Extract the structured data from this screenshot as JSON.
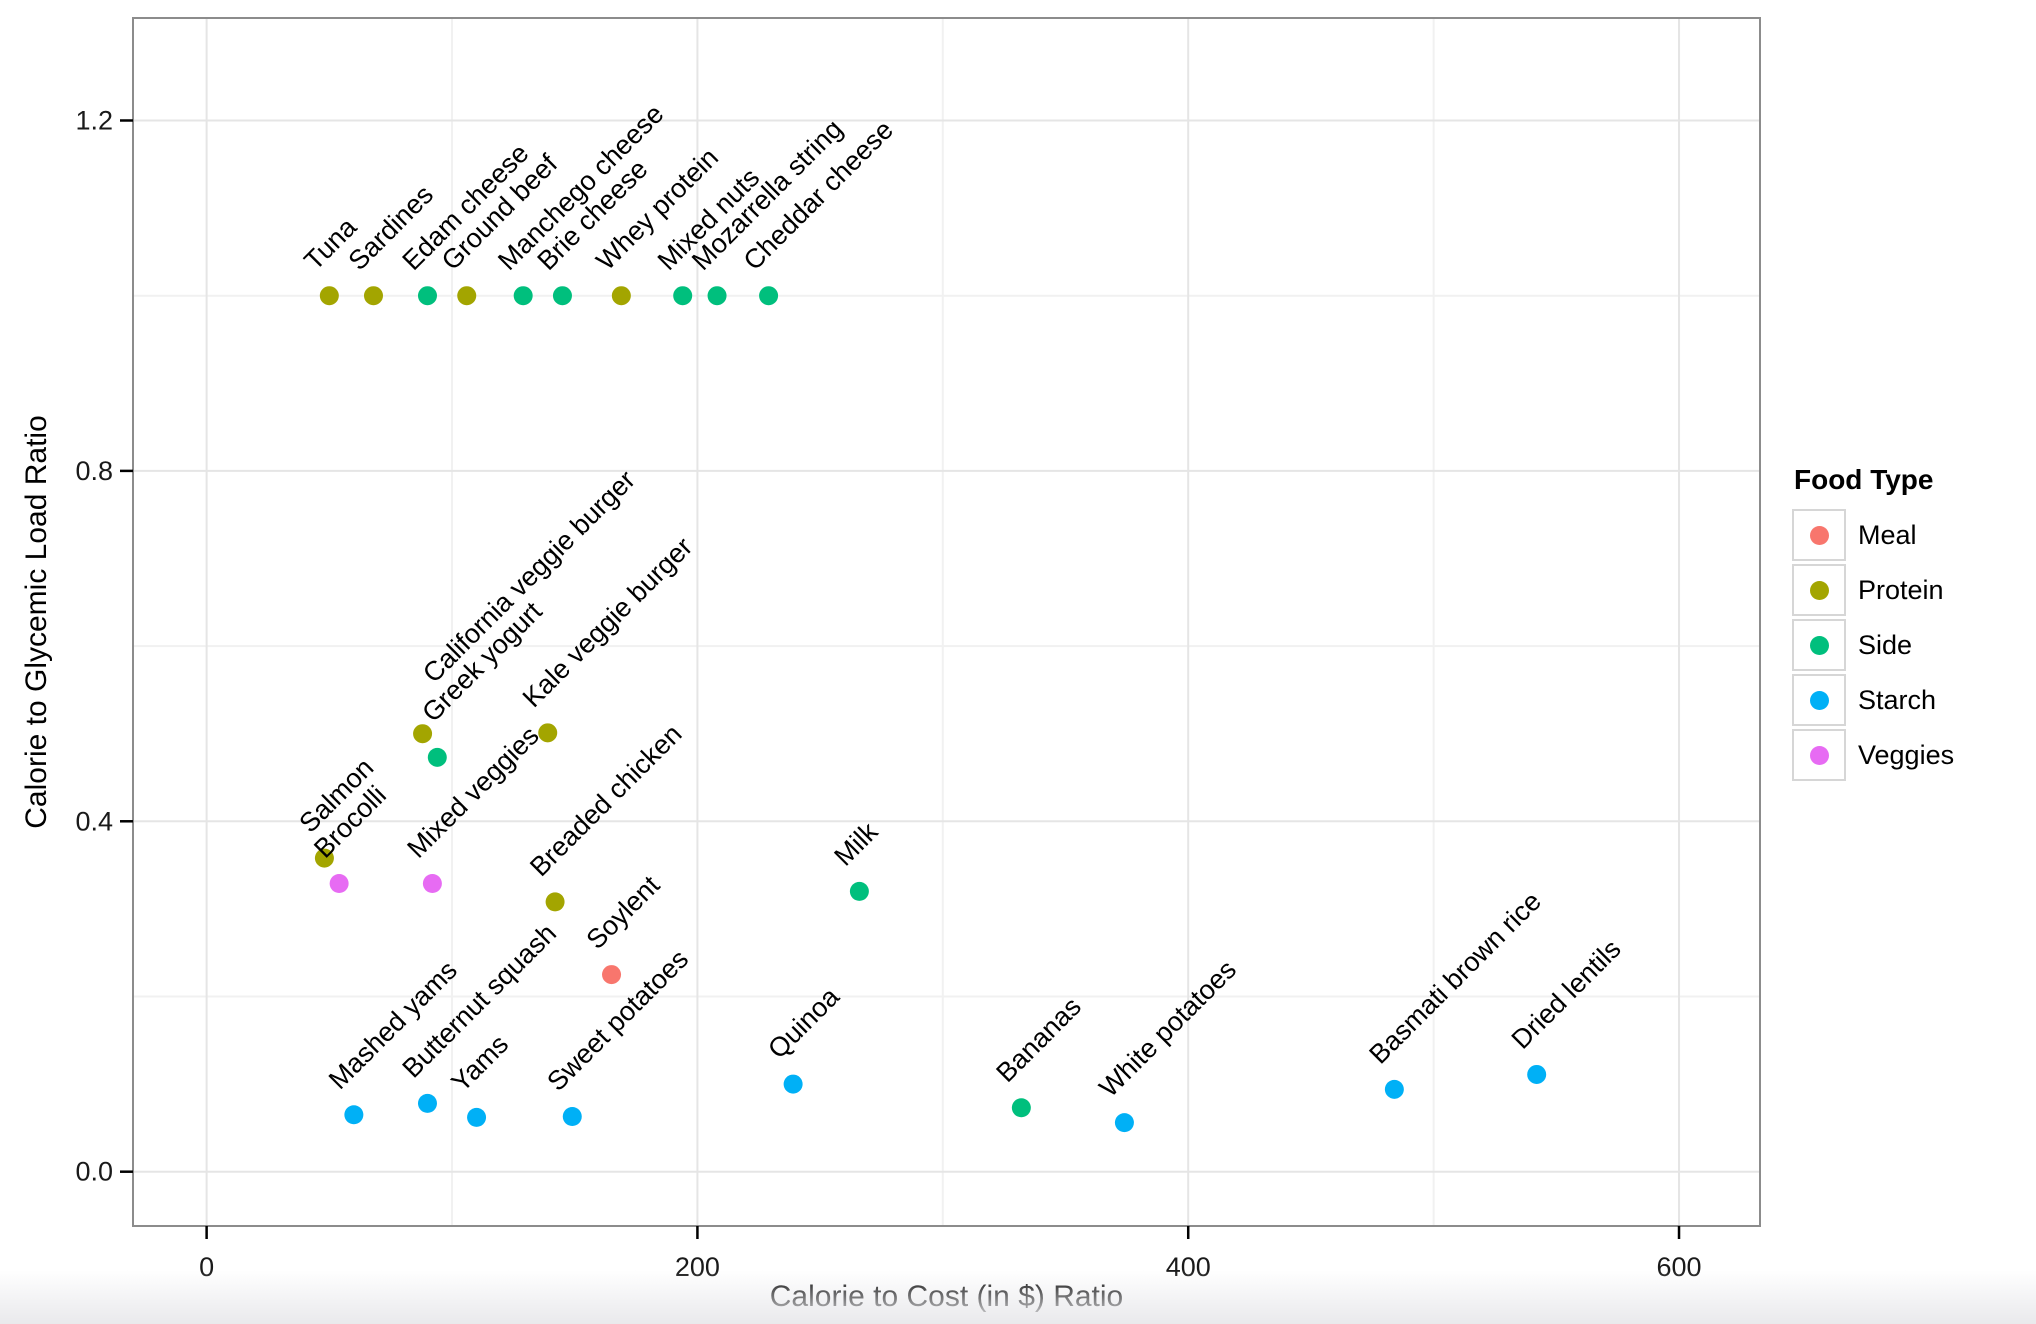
{
  "chart_data": {
    "type": "scatter",
    "title": "",
    "xlabel": "Calorie to Cost (in $) Ratio",
    "ylabel": "Calorie to Glycemic Load Ratio",
    "xlim": [
      -30,
      633
    ],
    "ylim": [
      -0.062,
      1.317
    ],
    "x_ticks": [
      0,
      200,
      400,
      600
    ],
    "x_tick_labels": [
      "0",
      "200",
      "400",
      "600"
    ],
    "y_ticks": [
      0,
      0.4,
      0.8,
      1.2
    ],
    "y_tick_labels": [
      "0.0",
      "0.4",
      "0.8",
      "1.2"
    ],
    "x_minor_ticks": [
      100,
      300,
      500
    ],
    "y_minor_ticks": [
      0.2,
      0.6,
      1.0
    ],
    "grid": {
      "major": true,
      "minor": true
    },
    "legend": {
      "title": "Food Type",
      "position": "right",
      "entries": [
        "Meal",
        "Protein",
        "Side",
        "Starch",
        "Veggies"
      ]
    },
    "colors": {
      "Meal": "#F8766D",
      "Protein": "#A3A500",
      "Side": "#00BF7D",
      "Starch": "#00B0F6",
      "Veggies": "#E76BF3"
    },
    "points": [
      {
        "name": "Tuna",
        "x": 50,
        "y": 1.0,
        "type": "Protein"
      },
      {
        "name": "Sardines",
        "x": 68,
        "y": 1.0,
        "type": "Protein"
      },
      {
        "name": "Edam cheese",
        "x": 90,
        "y": 1.0,
        "type": "Side"
      },
      {
        "name": "Ground beef",
        "x": 106,
        "y": 1.0,
        "type": "Protein"
      },
      {
        "name": "Manchego cheese",
        "x": 129,
        "y": 1.0,
        "type": "Side"
      },
      {
        "name": "Brie cheese",
        "x": 145,
        "y": 1.0,
        "type": "Side"
      },
      {
        "name": "Whey protein",
        "x": 169,
        "y": 1.0,
        "type": "Protein"
      },
      {
        "name": "Mixed nuts",
        "x": 194,
        "y": 1.0,
        "type": "Side"
      },
      {
        "name": "Mozarrella string",
        "x": 208,
        "y": 1.0,
        "type": "Side"
      },
      {
        "name": "Cheddar cheese",
        "x": 229,
        "y": 1.0,
        "type": "Side"
      },
      {
        "name": "California veggie burger",
        "x": 88,
        "y": 0.5,
        "type": "Protein",
        "label_nudge": 36
      },
      {
        "name": "Greek yogurt",
        "x": 94,
        "y": 0.473,
        "type": "Side",
        "label_nudge": 14
      },
      {
        "name": "Kale veggie burger",
        "x": 139,
        "y": 0.501,
        "type": "Protein"
      },
      {
        "name": "Salmon",
        "x": 48,
        "y": 0.358,
        "type": "Protein"
      },
      {
        "name": "Brocolli",
        "x": 54,
        "y": 0.329,
        "type": "Veggies"
      },
      {
        "name": "Mixed veggies",
        "x": 92,
        "y": 0.329,
        "type": "Veggies"
      },
      {
        "name": "Breaded chicken",
        "x": 142,
        "y": 0.308,
        "type": "Protein"
      },
      {
        "name": "Soylent",
        "x": 165,
        "y": 0.225,
        "type": "Meal"
      },
      {
        "name": "Milk",
        "x": 266,
        "y": 0.32,
        "type": "Side"
      },
      {
        "name": "Mashed yams",
        "x": 60,
        "y": 0.065,
        "type": "Starch"
      },
      {
        "name": "Butternut squash",
        "x": 90,
        "y": 0.078,
        "type": "Starch"
      },
      {
        "name": "Yams",
        "x": 110,
        "y": 0.062,
        "type": "Starch"
      },
      {
        "name": "Sweet potatoes",
        "x": 149,
        "y": 0.063,
        "type": "Starch"
      },
      {
        "name": "Quinoa",
        "x": 239,
        "y": 0.1,
        "type": "Starch"
      },
      {
        "name": "Bananas",
        "x": 332,
        "y": 0.073,
        "type": "Side"
      },
      {
        "name": "White potatoes",
        "x": 374,
        "y": 0.056,
        "type": "Starch"
      },
      {
        "name": "Basmati brown rice",
        "x": 484,
        "y": 0.094,
        "type": "Starch"
      },
      {
        "name": "Dried lentils",
        "x": 542,
        "y": 0.111,
        "type": "Starch"
      }
    ]
  }
}
